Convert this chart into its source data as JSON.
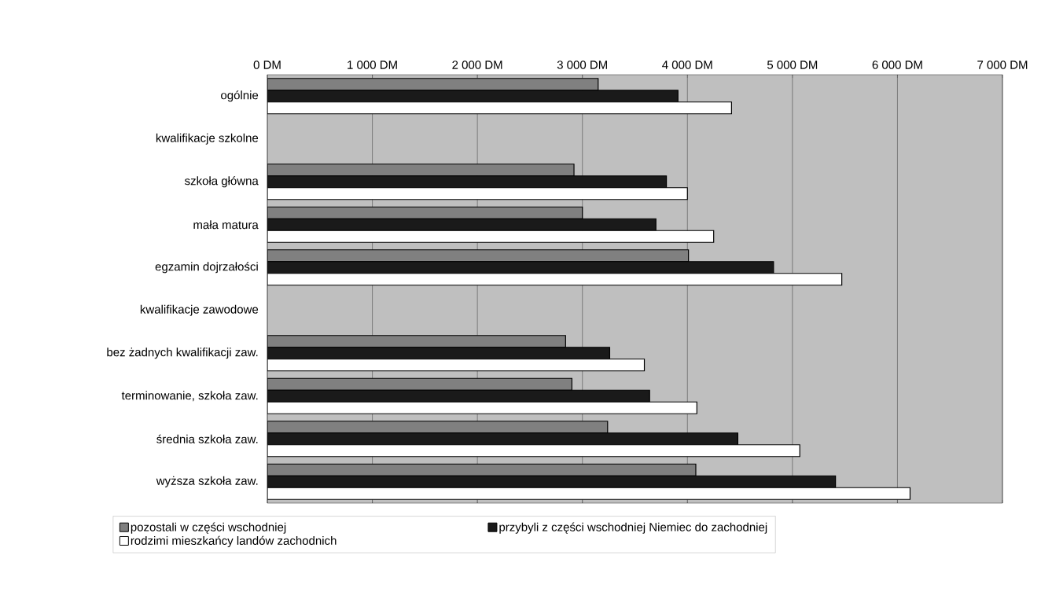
{
  "chart_data": {
    "type": "bar",
    "orientation": "horizontal",
    "categories": [
      "ogólnie",
      "kwalifikacje szkolne",
      "szkoła główna",
      "mała matura",
      "egzamin dojrzałości",
      "kwalifikacje zawodowe",
      "bez żadnych kwalifikacji zaw.",
      "terminowanie, szkoła zaw.",
      "średnia szkoła zaw.",
      "wyższa szkoła zaw."
    ],
    "series": [
      {
        "name": "pozostali w części wschodniej",
        "color": "#808080",
        "values": [
          3150,
          null,
          2920,
          3000,
          4010,
          null,
          2840,
          2900,
          3240,
          4080
        ]
      },
      {
        "name": "przybyli z części wschodniej Niemiec do zachodniej",
        "color": "#1a1a1a",
        "values": [
          3910,
          null,
          3800,
          3700,
          4820,
          null,
          3260,
          3640,
          4480,
          5410
        ]
      },
      {
        "name": "rodzimi mieszkańcy landów zachodnich",
        "color": "#ffffff",
        "values": [
          4420,
          null,
          4000,
          4250,
          5470,
          null,
          3590,
          4090,
          5070,
          6120
        ]
      }
    ],
    "xlim": [
      0,
      7000
    ],
    "xticks": [
      {
        "value": 0,
        "label": "0 DM"
      },
      {
        "value": 1000,
        "label": "1 000 DM"
      },
      {
        "value": 2000,
        "label": "2 000 DM"
      },
      {
        "value": 3000,
        "label": "3 000 DM"
      },
      {
        "value": 4000,
        "label": "4 000 DM"
      },
      {
        "value": 5000,
        "label": "5 000 DM"
      },
      {
        "value": 6000,
        "label": "6 000 DM"
      },
      {
        "value": 7000,
        "label": "7 000 DM"
      }
    ],
    "grid": "x",
    "legend": "bottom"
  }
}
